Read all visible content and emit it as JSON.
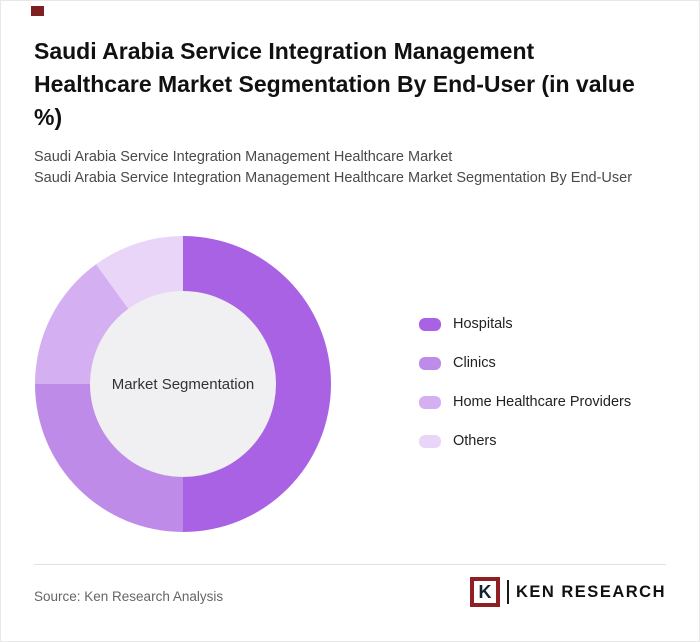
{
  "page": {
    "title": "Saudi Arabia Service Integration Management Healthcare Market Segmentation By End-User (in value %)",
    "subtitle_line1": "Saudi Arabia Service Integration Management Healthcare Market",
    "subtitle_line2": "Saudi Arabia Service Integration Management Healthcare Market Segmentation By End-User",
    "source": "Source: Ken Research Analysis",
    "accent_color": "#7e2022"
  },
  "chart_data": {
    "type": "pie",
    "donut": true,
    "center_label": "Market Segmentation",
    "legend_position": "right",
    "inner_circle_color": "#f0eff1",
    "series": [
      {
        "name": "Hospitals",
        "value": 50,
        "color": "#a962e3"
      },
      {
        "name": "Clinics",
        "value": 25,
        "color": "#be8be8"
      },
      {
        "name": "Home Healthcare Providers",
        "value": 15,
        "color": "#d4aff1"
      },
      {
        "name": "Others",
        "value": 10,
        "color": "#e8d5f8"
      }
    ]
  },
  "brand": {
    "initial": "K",
    "name": "KEN RESEARCH"
  }
}
